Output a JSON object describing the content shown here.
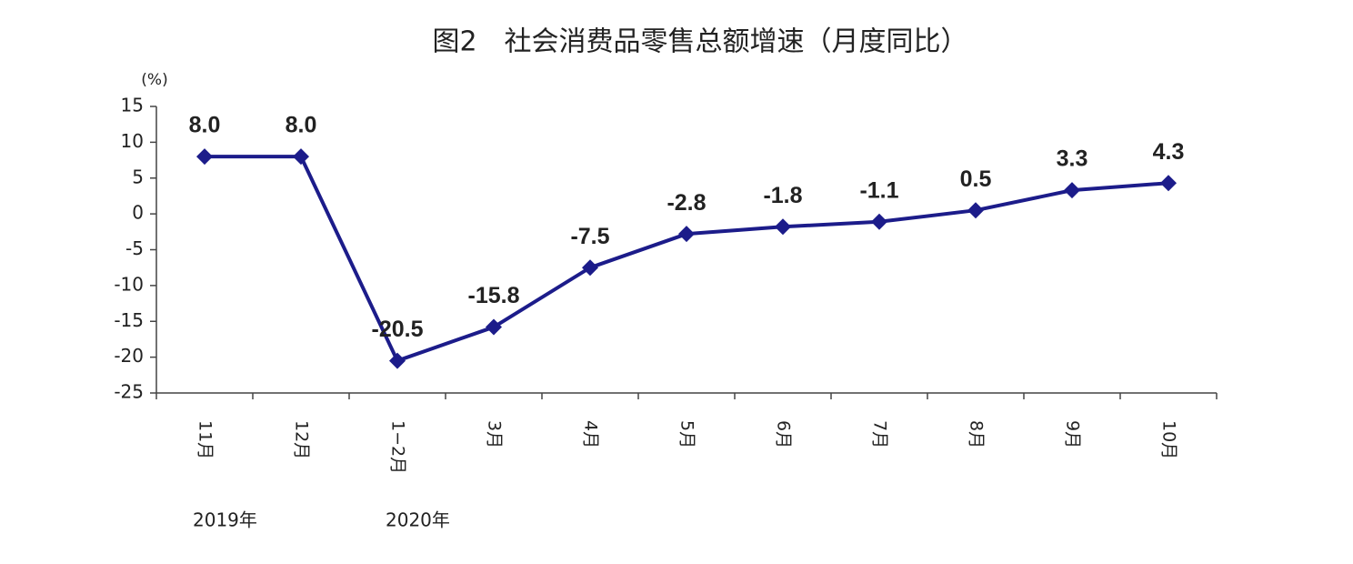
{
  "chart_data": {
    "type": "line",
    "title": "图2　社会消费品零售总额增速（月度同比）",
    "y_label": "(%)",
    "categories": [
      "11月",
      "12月",
      "1−2月",
      "3月",
      "4月",
      "5月",
      "6月",
      "7月",
      "8月",
      "9月",
      "10月"
    ],
    "year_labels": [
      "2019年",
      null,
      "2020年",
      null,
      null,
      null,
      null,
      null,
      null,
      null,
      null
    ],
    "values": [
      8.0,
      8.0,
      -20.5,
      -15.8,
      -7.5,
      -2.8,
      -1.8,
      -1.1,
      0.5,
      3.3,
      4.3
    ],
    "value_labels": [
      "8.0",
      "8.0",
      "-20.5",
      "-15.8",
      "-7.5",
      "-2.8",
      "-1.8",
      "-1.1",
      "0.5",
      "3.3",
      "4.3"
    ],
    "color": "#1c1c8a",
    "ylim": [
      -25,
      15
    ],
    "yticks": [
      15,
      10,
      5,
      0,
      -5,
      -10,
      -15,
      -20,
      -25
    ],
    "grid": false
  }
}
